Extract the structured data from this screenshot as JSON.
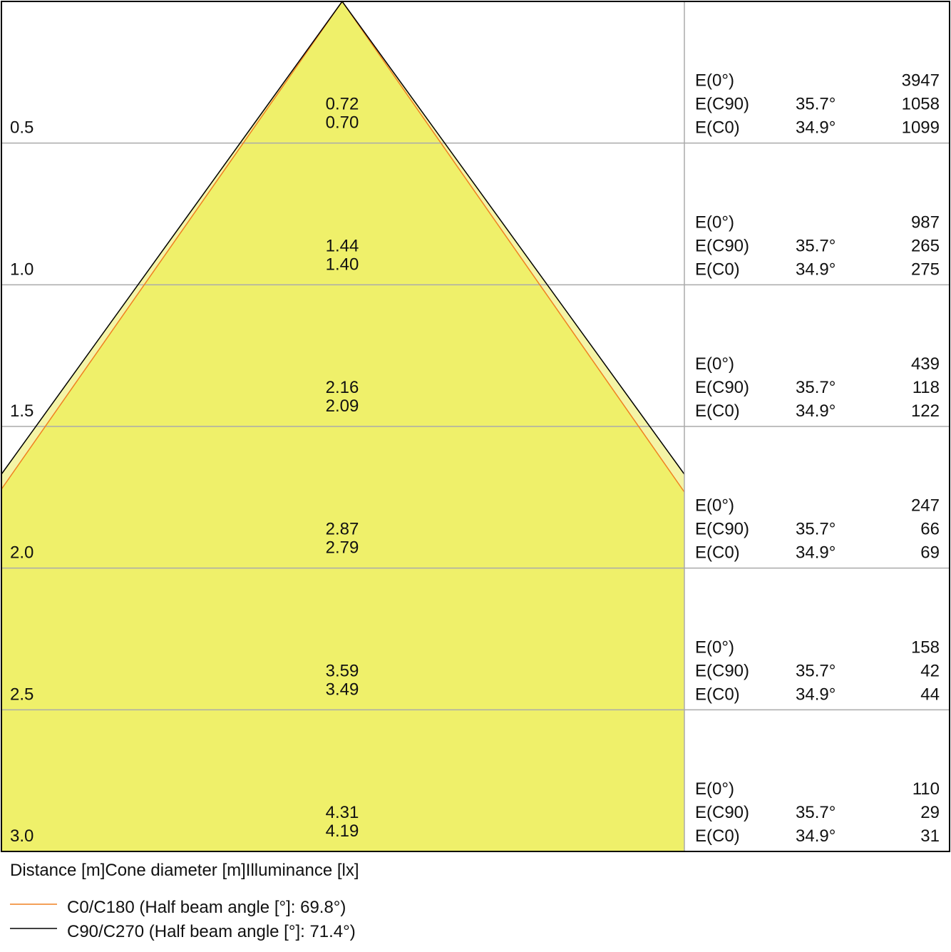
{
  "rows": [
    {
      "distance": "0.5",
      "diameters": [
        "0.72",
        "0.70"
      ],
      "illuminance": [
        {
          "label": "E(0°)",
          "value": "3947"
        },
        {
          "label": "E(C90)",
          "angle": "35.7°",
          "value": "1058"
        },
        {
          "label": "E(C0)",
          "angle": "34.9°",
          "value": "1099"
        }
      ]
    },
    {
      "distance": "1.0",
      "diameters": [
        "1.44",
        "1.40"
      ],
      "illuminance": [
        {
          "label": "E(0°)",
          "value": "987"
        },
        {
          "label": "E(C90)",
          "angle": "35.7°",
          "value": "265"
        },
        {
          "label": "E(C0)",
          "angle": "34.9°",
          "value": "275"
        }
      ]
    },
    {
      "distance": "1.5",
      "diameters": [
        "2.16",
        "2.09"
      ],
      "illuminance": [
        {
          "label": "E(0°)",
          "value": "439"
        },
        {
          "label": "E(C90)",
          "angle": "35.7°",
          "value": "118"
        },
        {
          "label": "E(C0)",
          "angle": "34.9°",
          "value": "122"
        }
      ]
    },
    {
      "distance": "2.0",
      "diameters": [
        "2.87",
        "2.79"
      ],
      "illuminance": [
        {
          "label": "E(0°)",
          "value": "247"
        },
        {
          "label": "E(C90)",
          "angle": "35.7°",
          "value": "66"
        },
        {
          "label": "E(C0)",
          "angle": "34.9°",
          "value": "69"
        }
      ]
    },
    {
      "distance": "2.5",
      "diameters": [
        "3.59",
        "3.49"
      ],
      "illuminance": [
        {
          "label": "E(0°)",
          "value": "158"
        },
        {
          "label": "E(C90)",
          "angle": "35.7°",
          "value": "42"
        },
        {
          "label": "E(C0)",
          "angle": "34.9°",
          "value": "44"
        }
      ]
    },
    {
      "distance": "3.0",
      "diameters": [
        "4.31",
        "4.19"
      ],
      "illuminance": [
        {
          "label": "E(0°)",
          "value": "110"
        },
        {
          "label": "E(C90)",
          "angle": "35.7°",
          "value": "29"
        },
        {
          "label": "E(C0)",
          "angle": "34.9°",
          "value": "31"
        }
      ]
    }
  ],
  "headers": [
    "Distance [m]",
    "Cone diameter [m]",
    "Illuminance [lx]"
  ],
  "legend": [
    {
      "label": "C0/C180 (Half beam angle [°]: 69.8°)",
      "color": "#f08020"
    },
    {
      "label": "C90/C270 (Half beam angle [°]: 71.4°)",
      "color": "#000000"
    }
  ]
}
